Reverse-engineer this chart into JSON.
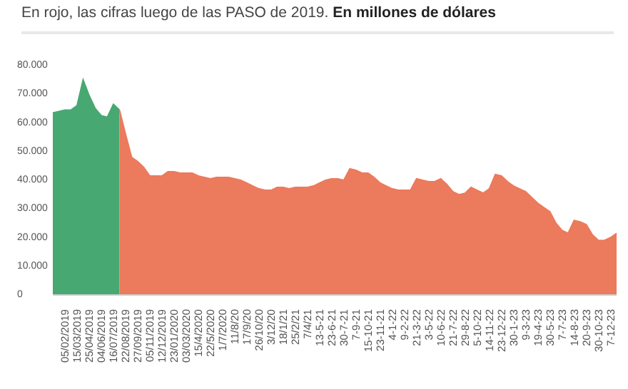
{
  "chart_data": {
    "type": "area",
    "title": "En rojo, las cifras luego de las PASO de 2019.",
    "subtitle": "En millones de dólares",
    "categories": [
      null,
      null,
      "05/02/2019",
      null,
      "15/03/2019",
      null,
      "25/04/2019",
      null,
      "04/06/2019",
      null,
      "16/07/2019",
      null,
      "22/08/2019",
      null,
      "27/09/2019",
      null,
      "05/11/2019",
      null,
      "12/12/2019",
      null,
      "23/01/2020",
      null,
      "03/03/2020",
      null,
      "15/4/2020",
      null,
      "22/5/2020",
      null,
      "1/7/2020",
      null,
      "11/8/20",
      null,
      "17/9/20",
      null,
      "26/10/20",
      null,
      "3/12/20",
      null,
      "18/1/21",
      null,
      "25/2/21",
      null,
      "7/4/21",
      null,
      "13-5-21",
      null,
      "23-6-21",
      null,
      "30-7-21",
      null,
      "7-9-21",
      null,
      "15-10-21",
      null,
      "23-11-21",
      null,
      "4-1-22",
      null,
      "9-2-22",
      null,
      "21-3-22",
      null,
      "3-5-22",
      null,
      "10-6-22",
      null,
      "21-7-22",
      null,
      "29-8-22",
      null,
      "5-10-22",
      null,
      "14-11-22",
      null,
      "23-12-22",
      null,
      "30-1-23",
      null,
      "9-3-23",
      null,
      "19-4-23",
      null,
      "30-5-23",
      null,
      "7-7-23",
      null,
      "14-8-23",
      null,
      "20-9-23",
      null,
      "30-10-23",
      null,
      "7-12-23",
      null
    ],
    "series": [
      {
        "color": "#48a872",
        "values": [
          63500,
          64000,
          64500,
          64500,
          66000,
          75000,
          69500,
          65000,
          62500,
          62000,
          66500,
          64500,
          null,
          null,
          null,
          null,
          null,
          null,
          null,
          null,
          null,
          null,
          null,
          null,
          null,
          null,
          null,
          null,
          null,
          null,
          null,
          null,
          null,
          null,
          null,
          null,
          null,
          null,
          null,
          null,
          null,
          null,
          null,
          null,
          null,
          null,
          null,
          null,
          null,
          null,
          null,
          null,
          null,
          null,
          null,
          null,
          null,
          null,
          null,
          null,
          null,
          null,
          null,
          null,
          null,
          null,
          null,
          null,
          null,
          null,
          null,
          null,
          null,
          null,
          null,
          null,
          null,
          null,
          null,
          null,
          null,
          null,
          null,
          null,
          null,
          null,
          null,
          null,
          null,
          null,
          null,
          null,
          null,
          null
        ]
      },
      {
        "color": "#ec7a5c",
        "values": [
          null,
          null,
          null,
          null,
          null,
          null,
          null,
          null,
          null,
          null,
          null,
          64500,
          56000,
          48000,
          46500,
          44500,
          41500,
          41500,
          41500,
          43000,
          43000,
          42500,
          42500,
          42500,
          41500,
          41000,
          40500,
          41000,
          41000,
          41000,
          40500,
          40000,
          39000,
          38000,
          37000,
          36500,
          36500,
          37500,
          37500,
          37000,
          37500,
          37500,
          37500,
          38000,
          39000,
          40000,
          40500,
          40500,
          40000,
          44000,
          43500,
          42500,
          42500,
          41000,
          39000,
          38000,
          37000,
          36500,
          36500,
          36500,
          40500,
          40000,
          39500,
          39500,
          40500,
          38500,
          36000,
          35000,
          35500,
          37500,
          36500,
          35500,
          37000,
          42000,
          41500,
          39500,
          38000,
          37000,
          36000,
          34000,
          32000,
          30500,
          29000,
          25000,
          22500,
          21500,
          26000,
          25500,
          24500,
          21000,
          19000,
          19000,
          20000,
          21500
        ]
      }
    ],
    "ylim": [
      0,
      80000
    ],
    "yticks": [
      {
        "value": 0,
        "label": "0"
      },
      {
        "value": 10000,
        "label": "10.000"
      },
      {
        "value": 20000,
        "label": "20.000"
      },
      {
        "value": 30000,
        "label": "30.000"
      },
      {
        "value": 40000,
        "label": "40.000"
      },
      {
        "value": 50000,
        "label": "50.000"
      },
      {
        "value": 60000,
        "label": "60.000"
      },
      {
        "value": 70000,
        "label": "70.000"
      },
      {
        "value": 80000,
        "label": "80.000"
      }
    ],
    "grid": false,
    "legend": false
  }
}
